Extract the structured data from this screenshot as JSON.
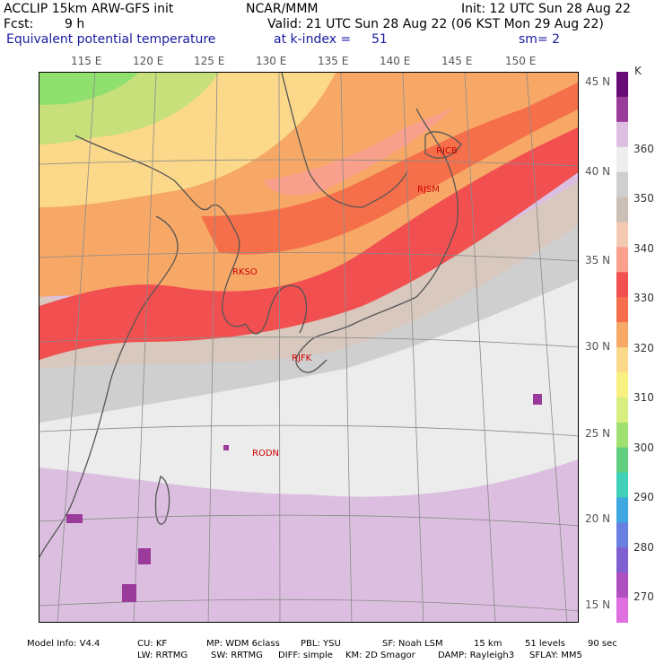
{
  "header": {
    "model": "ACCLIP 15km ARW-GFS init",
    "center": "NCAR/MMM",
    "init": "Init: 12 UTC Sun 28 Aug 22",
    "fcst_label": "Fcst:",
    "fcst_value": "9 h",
    "valid": "Valid: 21 UTC Sun 28 Aug 22 (06 KST Mon 29 Aug 22)",
    "field": "Equivalent potential temperature",
    "level": "at k-index =",
    "level_value": "51",
    "smooth": "sm= 2"
  },
  "lon_labels": [
    "115 E",
    "120 E",
    "125 E",
    "130 E",
    "135 E",
    "140 E",
    "145 E",
    "150 E"
  ],
  "lat_labels": [
    "45 N",
    "40 N",
    "35 N",
    "30 N",
    "25 N",
    "20 N",
    "15 N"
  ],
  "colorbar": {
    "unit": "K",
    "labels": [
      "360",
      "350",
      "340",
      "330",
      "320",
      "310",
      "300",
      "290",
      "280",
      "270"
    ],
    "colors": [
      "#6a0a78",
      "#9a3a9a",
      "#dcbfe0",
      "#eeeeee",
      "#cfcfcf",
      "#ccbfb6",
      "#f4c9b4",
      "#f8a08c",
      "#f25050",
      "#f5704a",
      "#f7a866",
      "#fbd88a",
      "#f8f080",
      "#d8ee80",
      "#a0e070",
      "#60d080",
      "#40d0b8",
      "#40a8e0",
      "#6a80e0",
      "#8060d0",
      "#b050c0",
      "#e070e0"
    ]
  },
  "stations": [
    {
      "id": "RJCB"
    },
    {
      "id": "RJSM"
    },
    {
      "id": "RKSO"
    },
    {
      "id": "RJFK"
    },
    {
      "id": "RODN"
    }
  ],
  "footer": {
    "line1": [
      "Model Info: V4.4",
      "CU: KF",
      "MP: WDM 6class",
      "PBL: YSU",
      "SF: Noah LSM",
      "15 km",
      "51 levels",
      "90 sec"
    ],
    "line2": [
      "LW: RRTMG",
      "SW: RRTMG",
      "DIFF: simple",
      "KM: 2D Smagor",
      "DAMP: Rayleigh3",
      "SFLAY: MM5"
    ]
  }
}
